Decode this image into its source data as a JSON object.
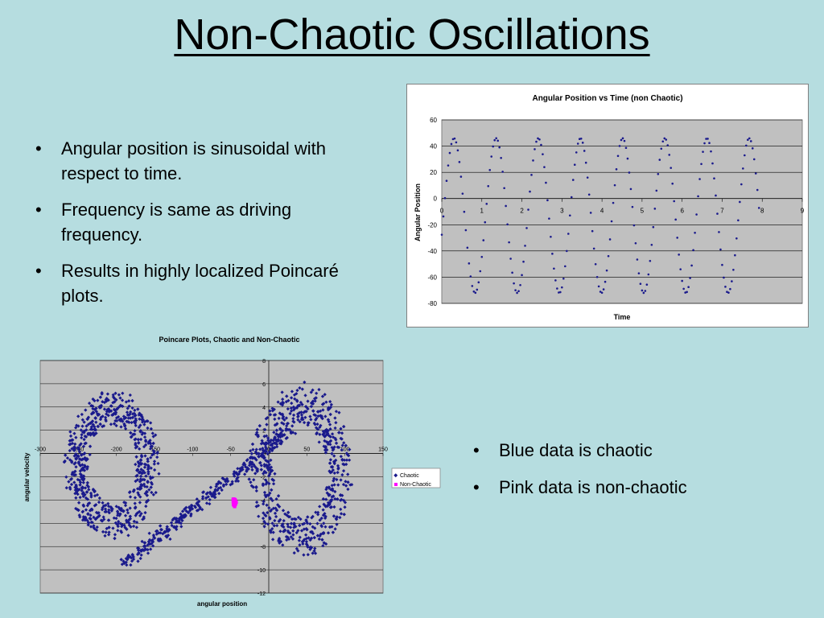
{
  "slide": {
    "title": "Non-Chaotic Oscillations",
    "bullets_top": [
      "Angular position is sinusoidal with respect to time.",
      "Frequency is same as driving frequency.",
      "Results in highly localized Poincaré plots."
    ],
    "bullets_bottom": [
      "Blue data is chaotic",
      "Pink data is non-chaotic"
    ]
  },
  "colors": {
    "background": "#b6dde0",
    "plot_area": "#c0c0c0",
    "chaotic": "#1a1a8c",
    "non_chaotic": "#ff00ff"
  },
  "chart_data": [
    {
      "type": "scatter",
      "title": "Angular Position vs Time (non Chaotic)",
      "xlabel": "Time",
      "ylabel": "Angular Position",
      "xlim": [
        0,
        9
      ],
      "ylim": [
        -80,
        60
      ],
      "xticks": [
        0,
        1,
        2,
        3,
        4,
        5,
        6,
        7,
        8,
        9
      ],
      "yticks": [
        60,
        40,
        20,
        0,
        -20,
        -40,
        -60,
        -80
      ],
      "grid": true,
      "legend": "none",
      "series": [
        {
          "x_range": [
            0,
            7.95
          ],
          "x_step": 0.04,
          "amplitude": 59,
          "offset": -13,
          "frequency": 0.95,
          "phase": -0.25,
          "color": "#1a1a8c"
        }
      ]
    },
    {
      "type": "scatter",
      "title": "Poincare Plots, Chaotic and Non-Chaotic",
      "xlabel": "angular position",
      "ylabel": "angular velocity",
      "xlim": [
        -300,
        150
      ],
      "ylim": [
        -12,
        8
      ],
      "xticks": [
        -300,
        -250,
        -200,
        -150,
        -100,
        -50,
        0,
        50,
        100,
        150
      ],
      "yticks": [
        8,
        6,
        4,
        2,
        0,
        -2,
        -4,
        -6,
        -8,
        -10,
        -12
      ],
      "grid": true,
      "legend": "right",
      "series": [
        {
          "name": "Chaotic",
          "color": "#1a1a8c",
          "point_count": 1800
        },
        {
          "name": "Non-Chaotic",
          "color": "#ff00ff",
          "center": [
            -45,
            -4.2
          ],
          "spread": [
            3,
            0.5
          ]
        }
      ]
    }
  ]
}
